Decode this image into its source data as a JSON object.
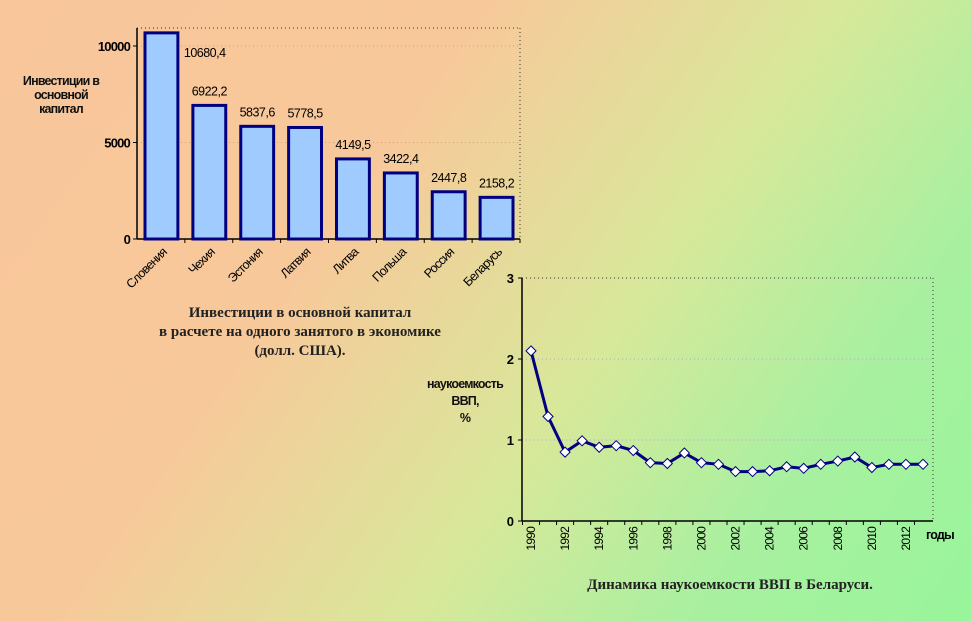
{
  "chart_data": [
    {
      "type": "bar",
      "title": "Инвестиции в основной капитал в расчете на одного занятого в экономике (долл. США).",
      "title_lines": [
        "Инвестиции в основной капитал",
        "в расчете на одного занятого в экономике",
        "(долл. США)."
      ],
      "ylabel": "Инвестиции в основной капитал",
      "ylabel_lines": [
        "Инвестиции в",
        "основной",
        "капитал"
      ],
      "categories": [
        "Словения",
        "Чехия",
        "Эстония",
        "Латвия",
        "Литва",
        "Польша",
        "Россия",
        "Беларусь"
      ],
      "values": [
        10680.4,
        6922.2,
        5837.6,
        5778.5,
        4149.5,
        3422.4,
        2447.8,
        2158.2
      ],
      "labels": [
        "10680,4",
        "6922,2",
        "5837,6",
        "5778,5",
        "4149,5",
        "3422,4",
        "2447,8",
        "2158,2"
      ],
      "yticks": [
        "0",
        "5000",
        "10000"
      ],
      "ylim": [
        0,
        10000
      ],
      "grid": true,
      "bar_color": "#9fcbff",
      "edge_color": "#000080"
    },
    {
      "type": "line",
      "title": "Динамика наукоемкости ВВП в Беларуси.",
      "ylabel_lines": [
        "наукоемкость",
        "ВВП,",
        "%"
      ],
      "xlabel": "годы",
      "x": [
        1990,
        1991,
        1992,
        1993,
        1994,
        1995,
        1996,
        1997,
        1998,
        1999,
        2000,
        2001,
        2002,
        2003,
        2004,
        2005,
        2006,
        2007,
        2008,
        2009,
        2010,
        2011,
        2012,
        2013
      ],
      "values": [
        2.1,
        1.29,
        0.85,
        0.99,
        0.91,
        0.93,
        0.87,
        0.72,
        0.71,
        0.84,
        0.72,
        0.7,
        0.61,
        0.61,
        0.62,
        0.67,
        0.65,
        0.7,
        0.74,
        0.79,
        0.66,
        0.7,
        0.7,
        0.7
      ],
      "xticks": [
        "1990",
        "1992",
        "1994",
        "1996",
        "1998",
        "2000",
        "2002",
        "2004",
        "2006",
        "2008",
        "2010",
        "2012"
      ],
      "yticks": [
        "0",
        "1",
        "2",
        "3"
      ],
      "ylim": [
        0,
        3
      ],
      "grid": true,
      "line_color": "#000080"
    }
  ]
}
